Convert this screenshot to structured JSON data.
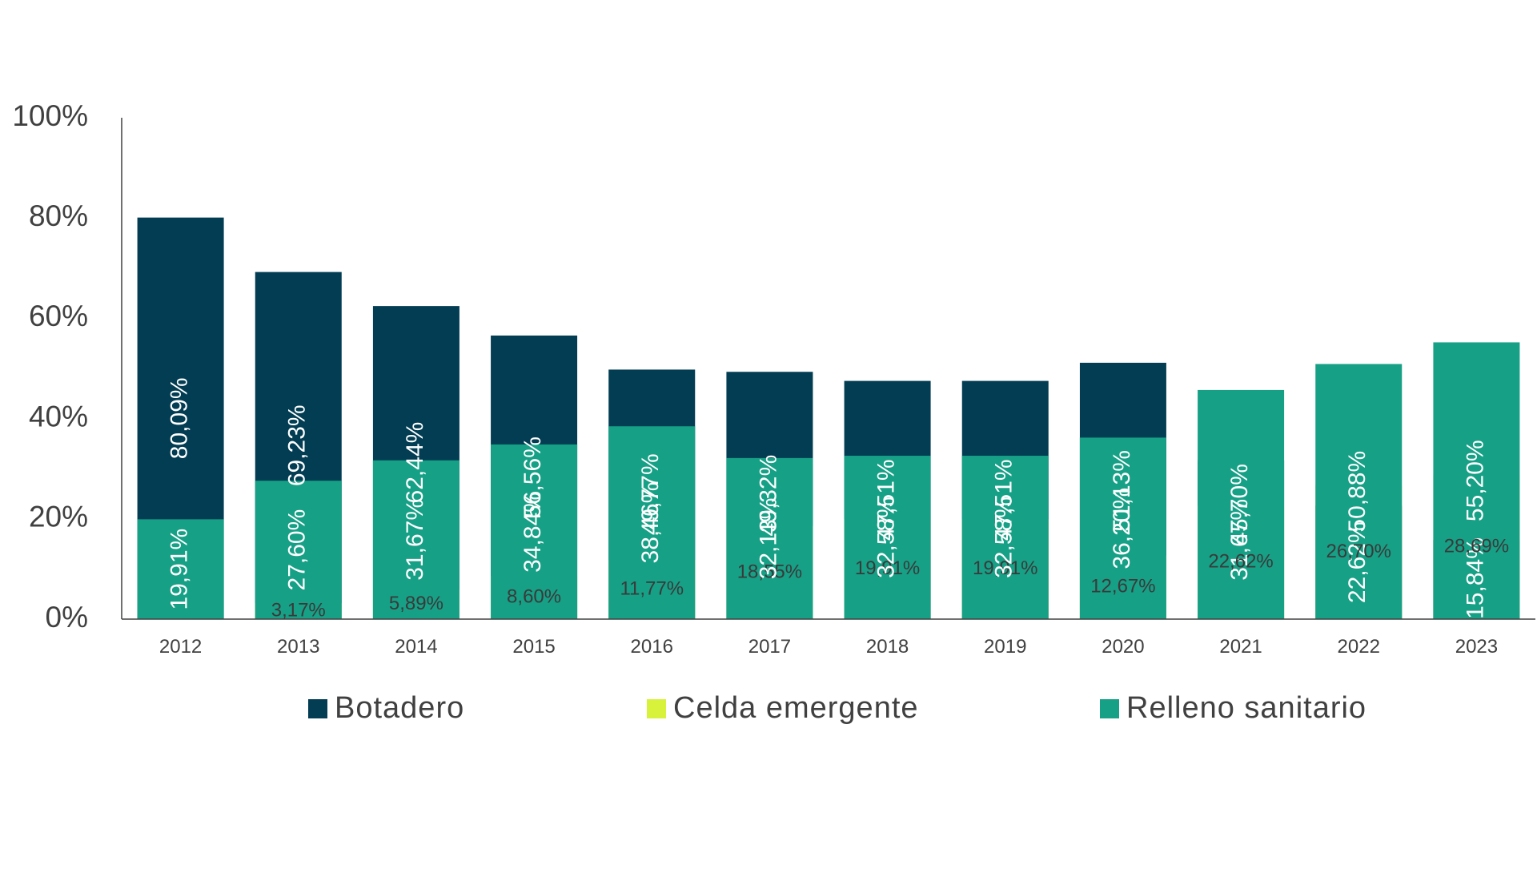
{
  "chart_data": {
    "type": "bar",
    "stacked": true,
    "normalized": true,
    "categories": [
      "2012",
      "2013",
      "2014",
      "2015",
      "2016",
      "2017",
      "2018",
      "2019",
      "2020",
      "2021",
      "2022",
      "2023"
    ],
    "series": [
      {
        "name": "Botadero",
        "color": "#023d53",
        "values": [
          80.09,
          69.23,
          62.44,
          56.56,
          49.77,
          49.32,
          47.51,
          47.51,
          51.13,
          31.67,
          22.62,
          15.84
        ],
        "labels": [
          "80,09%",
          "69,23%",
          "62,44%",
          "56,56%",
          "49,77%",
          "49,32%",
          "47,51%",
          "47,51%",
          "51,13%",
          "31,67%",
          "22,62%",
          "15,84%"
        ]
      },
      {
        "name": "Celda emergente",
        "color": "#d8f23c",
        "values": [
          0,
          3.17,
          5.89,
          8.6,
          11.77,
          18.55,
          19.91,
          19.91,
          12.67,
          22.62,
          26.7,
          28.69
        ],
        "labels": [
          "",
          "3,17%",
          "5,89%",
          "8,60%",
          "11,77%",
          "18,55%",
          "19,91%",
          "19,91%",
          "12,67%",
          "22,62%",
          "26,70%",
          "28,69%"
        ]
      },
      {
        "name": "Relleno sanitario",
        "color": "#16a086",
        "values": [
          19.91,
          27.6,
          31.67,
          34.84,
          38.46,
          32.13,
          32.58,
          32.58,
          36.2,
          45.7,
          50.88,
          55.2
        ],
        "labels": [
          "19,91%",
          "27,60%",
          "31,67%",
          "34,84%",
          "38,46%",
          "32,13%",
          "32,58%",
          "32,58%",
          "36,20%",
          "45,70%",
          "50,88%",
          "55,20%"
        ]
      }
    ],
    "yticks": [
      "0%",
      "20%",
      "40%",
      "60%",
      "80%",
      "100%"
    ],
    "ylim": [
      0,
      100
    ],
    "legend_position": "bottom",
    "grid": false
  }
}
